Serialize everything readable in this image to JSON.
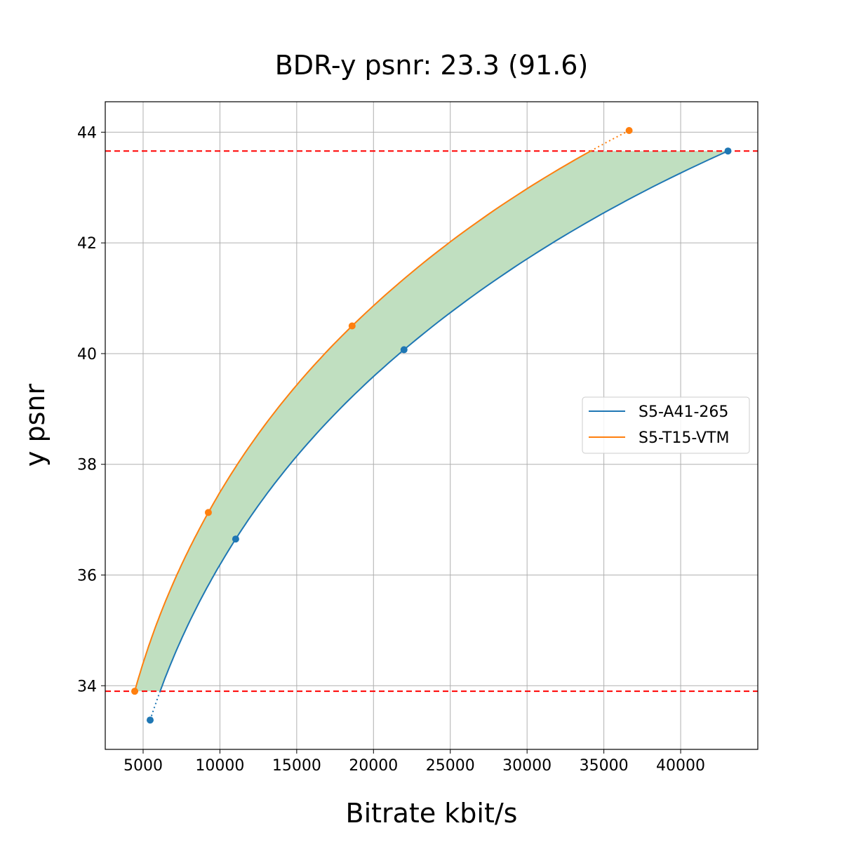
{
  "chart_data": {
    "type": "line",
    "title": "BDR-y psnr: 23.3 (91.6)",
    "xlabel": "Bitrate kbit/s",
    "ylabel": "y psnr",
    "xlim": [
      2534,
      45023
    ],
    "ylim": [
      32.85,
      44.55
    ],
    "xticks": [
      5000,
      10000,
      15000,
      20000,
      25000,
      30000,
      35000,
      40000
    ],
    "yticks": [
      34,
      36,
      38,
      40,
      42,
      44
    ],
    "grid": true,
    "legend_position": "right",
    "series": [
      {
        "name": "S5-A41-265",
        "color": "#1f77b4",
        "points": [
          [
            5457,
            33.38
          ],
          [
            11027,
            36.65
          ],
          [
            21986,
            40.07
          ],
          [
            43082,
            43.66
          ]
        ]
      },
      {
        "name": "S5-T15-VTM",
        "color": "#ff7f0e",
        "points": [
          [
            4452,
            33.9
          ],
          [
            9247,
            37.13
          ],
          [
            18607,
            40.5
          ],
          [
            36644,
            44.03
          ]
        ]
      }
    ],
    "reference_lines": {
      "color": "#ff0000",
      "style": "dashed",
      "y": [
        33.9,
        43.66
      ]
    },
    "fill_between": {
      "color": "#c0dfc0",
      "y_range": [
        33.9,
        43.66
      ]
    }
  }
}
